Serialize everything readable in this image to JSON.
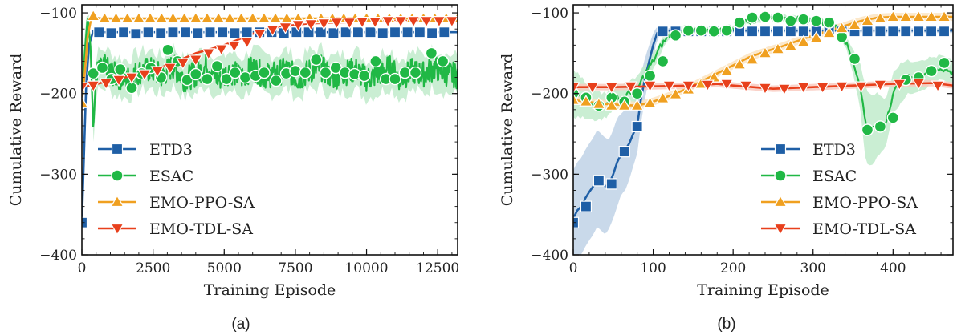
{
  "colors": {
    "ETD3": "#1f5fa6",
    "ESAC": "#20b845",
    "EMO-PPO-SA": "#f0a020",
    "EMO-TDL-SA": "#e8401c"
  },
  "chart_data": [
    {
      "type": "line",
      "caption": "(a)",
      "xlabel": "Training Episode",
      "ylabel": "Cumulative Reward",
      "xlim": [
        0,
        13200
      ],
      "ylim": [
        -400,
        -90
      ],
      "xticks": [
        0,
        2500,
        5000,
        7500,
        10000,
        12500
      ],
      "xtick_labels": [
        "0",
        "2500",
        "5000",
        "7500",
        "10000",
        "12500"
      ],
      "yticks": [
        -100,
        -200,
        -300,
        -400
      ],
      "ytick_labels": [
        "−100",
        "−200",
        "−300",
        "−400"
      ],
      "legend": "lower-left",
      "series": [
        {
          "name": "ETD3",
          "marker": "square",
          "x": [
            0,
            80,
            150,
            250,
            400,
            600,
            1000,
            2000,
            3000,
            4000,
            6000,
            8000,
            10000,
            12000,
            13200
          ],
          "y": [
            -360,
            -270,
            -190,
            -140,
            -122,
            -124,
            -124,
            -124,
            -124,
            -124,
            -124,
            -124,
            -124,
            -124,
            -124
          ],
          "marker_x": [
            0,
            600,
            1030,
            1470,
            1900,
            2330,
            2770,
            3200,
            3640,
            4070,
            4500,
            4940,
            5370,
            5800,
            6240,
            6670,
            7100,
            7540,
            7970,
            8400,
            8840,
            9270,
            9700,
            10140,
            10570,
            11000,
            11440,
            11870,
            12300,
            12730
          ],
          "marker_y": [
            -360,
            -124,
            -125,
            -124,
            -126,
            -124,
            -125,
            -124,
            -124,
            -125,
            -124,
            -124,
            -125,
            -124,
            -124,
            -124,
            -125,
            -124,
            -124,
            -124,
            -125,
            -124,
            -124,
            -124,
            -125,
            -124,
            -124,
            -124,
            -125,
            -124
          ]
        },
        {
          "name": "ESAC",
          "marker": "circle",
          "x": [
            0,
            100,
            200,
            300,
            400,
            500,
            800,
            1200,
            1600,
            2000,
            2400,
            2800,
            3200,
            3600,
            4000,
            4400,
            4800,
            5200,
            5600,
            6000,
            6400,
            6800,
            7200,
            7600,
            8000,
            8400,
            8800,
            9200,
            9600,
            10000,
            10400,
            10800,
            11200,
            11600,
            12000,
            12400,
            12800,
            13200
          ],
          "y": [
            -200,
            -150,
            -105,
            -140,
            -245,
            -175,
            -168,
            -178,
            -182,
            -173,
            -170,
            -178,
            -166,
            -182,
            -176,
            -165,
            -182,
            -172,
            -180,
            -168,
            -178,
            -176,
            -170,
            -182,
            -172,
            -168,
            -180,
            -175,
            -170,
            -182,
            -176,
            -168,
            -182,
            -172,
            -176,
            -168,
            -175,
            -178
          ],
          "noise": 16,
          "band": 24,
          "marker_x": [
            400,
            720,
            1040,
            1350,
            1750,
            2100,
            2420,
            2780,
            3020,
            3360,
            3700,
            4000,
            4400,
            4750,
            5080,
            5380,
            5740,
            6100,
            6400,
            6820,
            7180,
            7500,
            7850,
            8230,
            8560,
            8920,
            9240,
            9580,
            9920,
            10320,
            10680,
            11000,
            11350,
            11720,
            12280,
            12680
          ],
          "marker_y": [
            -175,
            -168,
            -182,
            -170,
            -193,
            -175,
            -168,
            -180,
            -146,
            -160,
            -183,
            -176,
            -182,
            -166,
            -182,
            -174,
            -180,
            -178,
            -174,
            -184,
            -175,
            -172,
            -174,
            -158,
            -174,
            -168,
            -174,
            -176,
            -178,
            -160,
            -182,
            -182,
            -174,
            -174,
            -150,
            -160
          ]
        },
        {
          "name": "EMO-PPO-SA",
          "marker": "triangle-up",
          "x": [
            0,
            100,
            200,
            300,
            400,
            500,
            700,
            1000,
            2000,
            4000,
            6000,
            8000,
            10000,
            12000,
            13200
          ],
          "y": [
            -210,
            -175,
            -130,
            -112,
            -104,
            -106,
            -107,
            -107,
            -107,
            -107,
            -107,
            -107,
            -107,
            -107,
            -107
          ],
          "marker_x": [
            0,
            400,
            800,
            1200,
            1600,
            2000,
            2400,
            2800,
            3200,
            3600,
            4000,
            4400,
            4800,
            5200,
            5600,
            6000,
            6400,
            6800,
            7200,
            7600,
            8000,
            8400,
            8800,
            9200,
            9600,
            10000,
            10400,
            10800,
            11200,
            11600,
            12000,
            12400,
            12800,
            13200
          ],
          "marker_y": [
            -212,
            -104,
            -107,
            -107,
            -107,
            -107,
            -107,
            -107,
            -107,
            -107,
            -107,
            -107,
            -107,
            -107,
            -107,
            -107,
            -107,
            -107,
            -107,
            -107,
            -107,
            -107,
            -107,
            -107,
            -107,
            -107,
            -107,
            -107,
            -107,
            -107,
            -107,
            -107,
            -107,
            -107
          ]
        },
        {
          "name": "EMO-TDL-SA",
          "marker": "triangle-down",
          "x": [
            0,
            300,
            1000,
            2000,
            3000,
            4000,
            4500,
            5000,
            5500,
            6000,
            6500,
            7000,
            7500,
            8000,
            9000,
            10000,
            11000,
            12000,
            13200
          ],
          "y": [
            -192,
            -190,
            -184,
            -176,
            -165,
            -150,
            -145,
            -140,
            -133,
            -126,
            -120,
            -117,
            -115,
            -113,
            -112,
            -111,
            -110,
            -110,
            -110
          ],
          "marker_x": [
            0,
            400,
            850,
            1300,
            1750,
            2200,
            2650,
            3100,
            3550,
            4000,
            4450,
            4900,
            5350,
            5800,
            6250,
            6700,
            7150,
            7600,
            8050,
            8500,
            8950,
            9400,
            9850,
            10300,
            10750,
            11200,
            11650,
            12100,
            12550,
            13000
          ],
          "marker_y": [
            -192,
            -190,
            -187,
            -183,
            -180,
            -176,
            -172,
            -168,
            -162,
            -158,
            -150,
            -145,
            -141,
            -136,
            -126,
            -121,
            -118,
            -115,
            -114,
            -113,
            -112,
            -112,
            -111,
            -111,
            -110,
            -110,
            -110,
            -110,
            -110,
            -110
          ]
        }
      ]
    },
    {
      "type": "line",
      "caption": "(b)",
      "xlabel": "Training Episode",
      "ylabel": "Cumulative Reward",
      "xlim": [
        0,
        475
      ],
      "ylim": [
        -400,
        -90
      ],
      "xticks": [
        0,
        100,
        200,
        300,
        400
      ],
      "xtick_labels": [
        "0",
        "100",
        "200",
        "300",
        "400"
      ],
      "yticks": [
        -100,
        -200,
        -300,
        -400
      ],
      "ytick_labels": [
        "−100",
        "−200",
        "−300",
        "−400"
      ],
      "legend": "lower-right",
      "series": [
        {
          "name": "ETD3",
          "marker": "square",
          "x": [
            0,
            5,
            10,
            15,
            20,
            25,
            30,
            35,
            40,
            45,
            50,
            55,
            60,
            65,
            70,
            75,
            80,
            85,
            90,
            95,
            100,
            105,
            110,
            115,
            130,
            200,
            300,
            400,
            475
          ],
          "y": [
            -355,
            -345,
            -340,
            -330,
            -322,
            -315,
            -305,
            -310,
            -315,
            -312,
            -300,
            -285,
            -275,
            -270,
            -262,
            -250,
            -240,
            -205,
            -180,
            -160,
            -140,
            -125,
            -122,
            -122,
            -122,
            -122,
            -122,
            -122,
            -122
          ],
          "band": [
            60,
            60,
            60,
            60,
            60,
            60,
            60,
            60,
            60,
            55,
            55,
            55,
            50,
            50,
            45,
            40,
            35,
            30,
            25,
            20,
            15,
            8,
            4,
            3,
            3,
            3,
            3,
            3,
            3
          ],
          "marker_x": [
            0,
            16,
            32,
            48,
            64,
            80,
            112,
            128,
            144,
            160,
            176,
            192,
            208,
            224,
            240,
            256,
            272,
            288,
            304,
            320,
            336,
            352,
            368,
            384,
            400,
            416,
            432,
            448,
            464
          ],
          "marker_y": [
            -360,
            -340,
            -308,
            -312,
            -272,
            -241,
            -123,
            -123,
            -123,
            -123,
            -123,
            -123,
            -123,
            -123,
            -123,
            -123,
            -123,
            -123,
            -123,
            -123,
            -123,
            -123,
            -123,
            -123,
            -123,
            -123,
            -123,
            -123,
            -123
          ]
        },
        {
          "name": "ESAC",
          "marker": "circle",
          "x": [
            0,
            10,
            20,
            30,
            40,
            50,
            60,
            70,
            80,
            90,
            100,
            110,
            120,
            130,
            140,
            160,
            180,
            200,
            220,
            240,
            260,
            280,
            300,
            320,
            330,
            340,
            350,
            360,
            365,
            370,
            380,
            390,
            400,
            410,
            420,
            440,
            460,
            475
          ],
          "y": [
            -200,
            -205,
            -210,
            -215,
            -215,
            -205,
            -205,
            -200,
            -195,
            -175,
            -160,
            -140,
            -128,
            -122,
            -120,
            -122,
            -122,
            -118,
            -110,
            -106,
            -106,
            -108,
            -110,
            -112,
            -120,
            -135,
            -160,
            -195,
            -235,
            -245,
            -240,
            -238,
            -200,
            -185,
            -180,
            -175,
            -168,
            -175
          ],
          "noise": 4,
          "band": [
            30,
            25,
            20,
            18,
            15,
            15,
            15,
            15,
            15,
            12,
            10,
            8,
            5,
            4,
            3,
            3,
            3,
            3,
            3,
            3,
            3,
            3,
            3,
            3,
            4,
            6,
            15,
            30,
            45,
            45,
            40,
            30,
            25,
            25,
            20,
            18,
            15,
            15
          ],
          "marker_x": [
            0,
            16,
            32,
            48,
            64,
            80,
            96,
            112,
            128,
            144,
            160,
            176,
            192,
            208,
            224,
            240,
            256,
            272,
            288,
            304,
            320,
            336,
            352,
            368,
            384,
            400,
            416,
            432,
            448,
            464
          ],
          "marker_y": [
            -200,
            -205,
            -215,
            -205,
            -210,
            -200,
            -178,
            -160,
            -128,
            -122,
            -122,
            -123,
            -122,
            -112,
            -106,
            -105,
            -106,
            -110,
            -108,
            -110,
            -112,
            -130,
            -157,
            -245,
            -241,
            -230,
            -183,
            -180,
            -172,
            -162
          ]
        },
        {
          "name": "EMO-PPO-SA",
          "marker": "triangle-up",
          "x": [
            0,
            40,
            80,
            100,
            120,
            140,
            160,
            180,
            200,
            220,
            240,
            260,
            280,
            300,
            320,
            340,
            360,
            380,
            400,
            420,
            440,
            460,
            475
          ],
          "y": [
            -208,
            -213,
            -215,
            -210,
            -203,
            -195,
            -185,
            -175,
            -165,
            -155,
            -148,
            -142,
            -135,
            -128,
            -122,
            -116,
            -110,
            -106,
            -105,
            -105,
            -105,
            -105,
            -105
          ],
          "band": 5,
          "marker_x": [
            0,
            16,
            32,
            48,
            64,
            80,
            96,
            112,
            128,
            144,
            160,
            176,
            192,
            208,
            224,
            240,
            256,
            272,
            288,
            304,
            320,
            336,
            352,
            368,
            384,
            400,
            416,
            432,
            448,
            464
          ],
          "marker_y": [
            -208,
            -210,
            -213,
            -215,
            -215,
            -215,
            -212,
            -206,
            -201,
            -195,
            -188,
            -180,
            -172,
            -164,
            -158,
            -150,
            -145,
            -141,
            -136,
            -131,
            -125,
            -119,
            -115,
            -110,
            -107,
            -105,
            -105,
            -105,
            -105,
            -105
          ]
        },
        {
          "name": "EMO-TDL-SA",
          "marker": "triangle-down",
          "x": [
            0,
            50,
            100,
            150,
            180,
            200,
            250,
            300,
            350,
            400,
            450,
            475
          ],
          "y": [
            -192,
            -192,
            -191,
            -190,
            -188,
            -190,
            -194,
            -192,
            -190,
            -188,
            -187,
            -190
          ],
          "band": 4,
          "marker_x": [
            0,
            24,
            48,
            72,
            96,
            120,
            144,
            168,
            192,
            216,
            240,
            264,
            288,
            312,
            336,
            360,
            384,
            408,
            432,
            456
          ],
          "marker_y": [
            -192,
            -192,
            -192,
            -191,
            -190,
            -190,
            -190,
            -189,
            -188,
            -190,
            -193,
            -194,
            -192,
            -192,
            -191,
            -191,
            -189,
            -188,
            -187,
            -190
          ]
        }
      ]
    }
  ]
}
